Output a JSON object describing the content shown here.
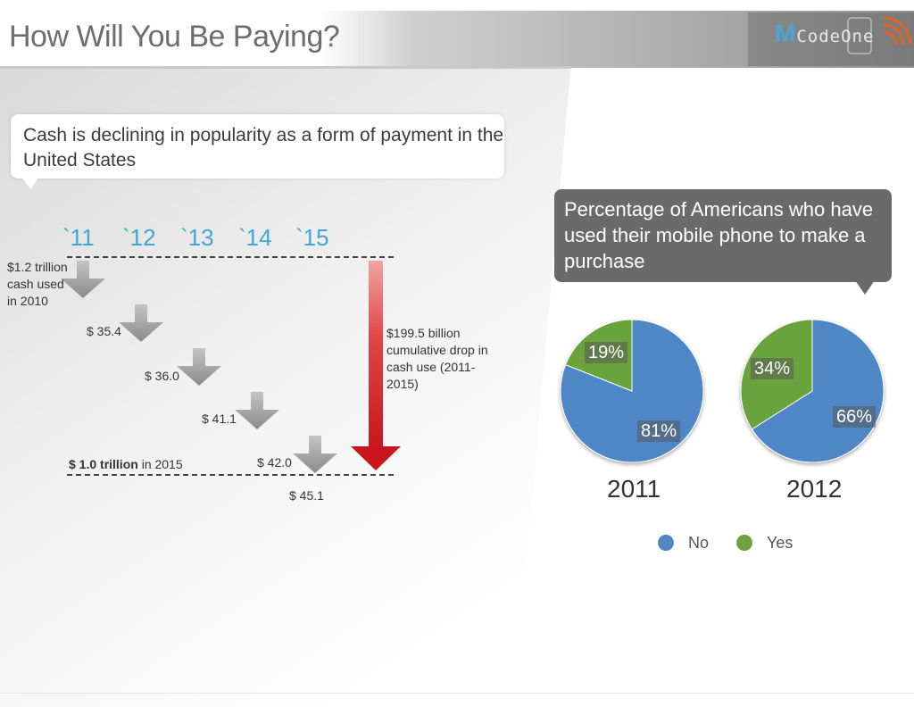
{
  "slide": {
    "title": "How Will You Be Paying?",
    "logo": {
      "initial": "M",
      "rest": "CodeOne"
    },
    "cash_bubble": {
      "text": "Cash is declining in popularity as a form of payment in the United States"
    },
    "phone_bubble": {
      "text": "Percentage of Americans who have used their mobile phone to make a purchase"
    }
  },
  "colors": {
    "no": "#4f86c6",
    "yes": "#6aa33a",
    "year_labels": "#3fa7d6",
    "arrow_grey": "#9a9a9a",
    "arrow_red": "#d8262b",
    "header_gray": "#6d6d6d"
  },
  "chart_data": [
    {
      "type": "bar",
      "categories": [
        "`11",
        "`12",
        "`13",
        "`14",
        "`15"
      ],
      "values": [
        35.4,
        36.0,
        41.1,
        42.0,
        45.1
      ],
      "value_labels": [
        "$ 35.4",
        "$ 36.0",
        "$ 41.1",
        "$ 42.0",
        "$ 45.1"
      ],
      "start_label": "$1.2 trillion cash used in 2010",
      "end_label": {
        "bold": "$ 1.0 trillion",
        "rest": " in 2015"
      },
      "total_annotation": "$199.5 billion cumulative drop in cash use (2011-2015)"
    },
    {
      "type": "pie",
      "title": "2011",
      "slices": [
        {
          "name": "No",
          "value": 81
        },
        {
          "name": "Yes",
          "value": 19
        }
      ],
      "labels": [
        "81%",
        "19%"
      ]
    },
    {
      "type": "pie",
      "title": "2012",
      "slices": [
        {
          "name": "No",
          "value": 66
        },
        {
          "name": "Yes",
          "value": 34
        }
      ],
      "labels": [
        "66%",
        "34%"
      ]
    }
  ],
  "legend": [
    "No",
    "Yes"
  ]
}
